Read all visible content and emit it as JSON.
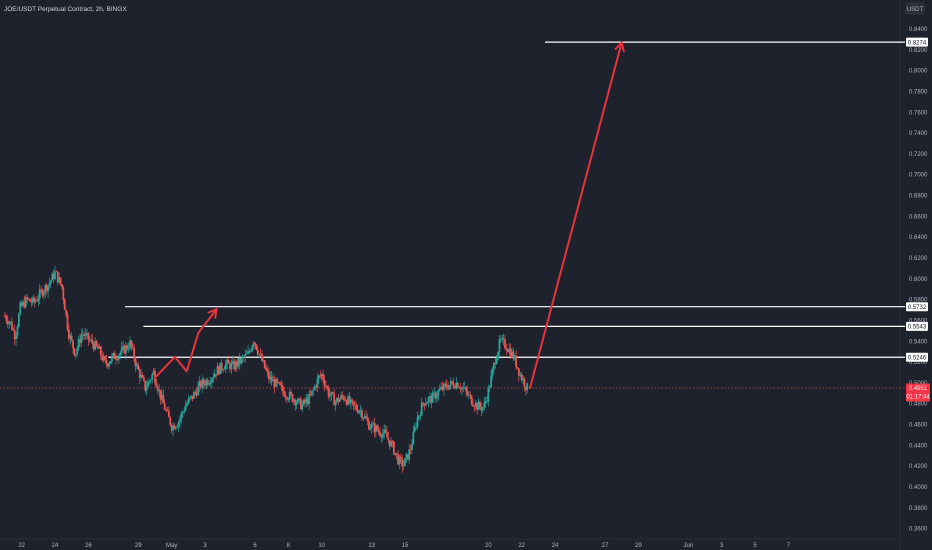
{
  "header": {
    "title": "JOE/USDT Perpetual Contract, 2h, BINGX",
    "currency": "USDT"
  },
  "colors": {
    "background": "#1e222d",
    "axis_panel": "#1e222d",
    "up": "#26a69a",
    "down": "#ef5350",
    "projection": "#e8323c",
    "levels": "#ffffff",
    "axis_text": "#b2b5be",
    "current_price_bg": "#f23645"
  },
  "current_price": {
    "value": "0.4951",
    "countdown": "01:17:44"
  },
  "chart_data": {
    "type": "candlestick",
    "title": "JOE/USDT Perpetual Contract, 2h, BINGX",
    "ylabel": "USDT",
    "ylim": [
      0.35,
      0.865
    ],
    "x_range": [
      0,
      54
    ],
    "x_unit": "days from Apr 21",
    "grid": false,
    "y_ticks": [
      "0.8400",
      "0.8200",
      "0.8000",
      "0.7800",
      "0.7600",
      "0.7400",
      "0.7200",
      "0.7000",
      "0.6800",
      "0.6600",
      "0.6400",
      "0.6200",
      "0.6000",
      "0.5800",
      "0.5600",
      "0.5400",
      "0.5200",
      "0.5000",
      "0.4800",
      "0.4600",
      "0.4400",
      "0.4200",
      "0.4000",
      "0.3800",
      "0.3600"
    ],
    "x_ticks": [
      {
        "label": "22",
        "x": 1
      },
      {
        "label": "24",
        "x": 3
      },
      {
        "label": "26",
        "x": 5
      },
      {
        "label": "29",
        "x": 8
      },
      {
        "label": "May",
        "x": 10
      },
      {
        "label": "3",
        "x": 12
      },
      {
        "label": "6",
        "x": 15
      },
      {
        "label": "8",
        "x": 17
      },
      {
        "label": "10",
        "x": 19
      },
      {
        "label": "13",
        "x": 22
      },
      {
        "label": "15",
        "x": 24
      },
      {
        "label": "20",
        "x": 29
      },
      {
        "label": "22",
        "x": 31
      },
      {
        "label": "24",
        "x": 33
      },
      {
        "label": "27",
        "x": 36
      },
      {
        "label": "29",
        "x": 38
      },
      {
        "label": "Jun",
        "x": 41
      },
      {
        "label": "3",
        "x": 43
      },
      {
        "label": "5",
        "x": 45
      },
      {
        "label": "7",
        "x": 47
      }
    ],
    "price_path": [
      [
        0.0,
        0.565
      ],
      [
        0.4,
        0.558
      ],
      [
        0.7,
        0.545
      ],
      [
        1.0,
        0.572
      ],
      [
        1.4,
        0.58
      ],
      [
        1.8,
        0.577
      ],
      [
        2.3,
        0.588
      ],
      [
        2.7,
        0.595
      ],
      [
        3.1,
        0.606
      ],
      [
        3.5,
        0.592
      ],
      [
        3.9,
        0.548
      ],
      [
        4.3,
        0.528
      ],
      [
        4.7,
        0.548
      ],
      [
        5.2,
        0.54
      ],
      [
        5.7,
        0.532
      ],
      [
        6.1,
        0.518
      ],
      [
        6.6,
        0.525
      ],
      [
        7.1,
        0.53
      ],
      [
        7.6,
        0.538
      ],
      [
        8.0,
        0.515
      ],
      [
        8.5,
        0.495
      ],
      [
        9.0,
        0.51
      ],
      [
        9.4,
        0.488
      ],
      [
        9.8,
        0.47
      ],
      [
        10.1,
        0.458
      ],
      [
        10.5,
        0.463
      ],
      [
        10.9,
        0.478
      ],
      [
        11.3,
        0.486
      ],
      [
        11.8,
        0.498
      ],
      [
        12.3,
        0.503
      ],
      [
        12.8,
        0.512
      ],
      [
        13.3,
        0.518
      ],
      [
        13.8,
        0.516
      ],
      [
        14.3,
        0.522
      ],
      [
        14.7,
        0.528
      ],
      [
        15.0,
        0.542
      ],
      [
        15.4,
        0.525
      ],
      [
        15.9,
        0.505
      ],
      [
        16.4,
        0.498
      ],
      [
        16.9,
        0.49
      ],
      [
        17.4,
        0.485
      ],
      [
        17.9,
        0.478
      ],
      [
        18.4,
        0.486
      ],
      [
        18.9,
        0.505
      ],
      [
        19.1,
        0.508
      ],
      [
        19.5,
        0.49
      ],
      [
        19.9,
        0.482
      ],
      [
        20.4,
        0.487
      ],
      [
        20.9,
        0.478
      ],
      [
        21.4,
        0.474
      ],
      [
        21.9,
        0.46
      ],
      [
        22.4,
        0.455
      ],
      [
        22.9,
        0.45
      ],
      [
        23.3,
        0.44
      ],
      [
        23.7,
        0.425
      ],
      [
        24.0,
        0.421
      ],
      [
        24.4,
        0.436
      ],
      [
        24.8,
        0.465
      ],
      [
        25.2,
        0.482
      ],
      [
        25.7,
        0.485
      ],
      [
        26.2,
        0.493
      ],
      [
        26.7,
        0.498
      ],
      [
        27.2,
        0.5
      ],
      [
        27.6,
        0.494
      ],
      [
        28.0,
        0.485
      ],
      [
        28.4,
        0.478
      ],
      [
        28.8,
        0.476
      ],
      [
        29.1,
        0.493
      ],
      [
        29.5,
        0.523
      ],
      [
        29.8,
        0.54
      ],
      [
        30.2,
        0.535
      ],
      [
        30.6,
        0.525
      ],
      [
        31.0,
        0.508
      ],
      [
        31.4,
        0.495
      ]
    ],
    "levels": [
      {
        "label": "0.8274",
        "y": 0.8274,
        "x_start": 32.4,
        "x_end": 54
      },
      {
        "label": "0.5732",
        "y": 0.5732,
        "x_start": 7.2,
        "x_end": 54
      },
      {
        "label": "0.5543",
        "y": 0.5543,
        "x_start": 8.3,
        "x_end": 54
      },
      {
        "label": "0.5246",
        "y": 0.5246,
        "x_start": 6.2,
        "x_end": 54
      }
    ],
    "projections": [
      {
        "name": "past-up",
        "points": [
          [
            9.0,
            0.505
          ],
          [
            10.2,
            0.525
          ],
          [
            10.9,
            0.511
          ],
          [
            11.6,
            0.548
          ],
          [
            12.7,
            0.571
          ]
        ]
      },
      {
        "name": "target",
        "points": [
          [
            31.5,
            0.495
          ],
          [
            37.0,
            0.827
          ]
        ]
      }
    ]
  }
}
